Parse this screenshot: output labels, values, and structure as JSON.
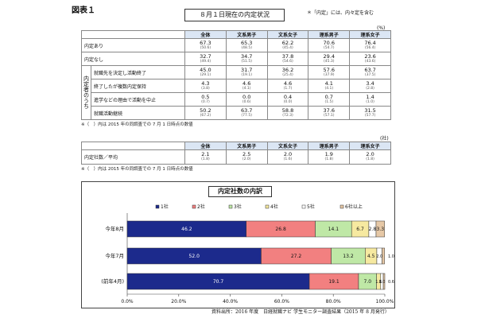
{
  "figure_label": "図表１",
  "table1": {
    "title": "８月１日現在の内定状況",
    "note": "＊「内定」には、内々定を含む",
    "unit": "(%)",
    "columns": [
      "全体",
      "文系男子",
      "文系女子",
      "理系男子",
      "理系女子"
    ],
    "rows": [
      {
        "label": "内定あり",
        "values": [
          "67.3",
          "65.3",
          "62.2",
          "70.6",
          "76.4"
        ],
        "prev": [
          "(50.6)",
          "(48.5)",
          "(45.4)",
          "(54.7)",
          "(56.4)"
        ]
      },
      {
        "label": "内定なし",
        "values": [
          "32.7",
          "34.7",
          "37.8",
          "29.4",
          "23.6"
        ],
        "prev": [
          "(49.4)",
          "(51.5)",
          "(54.6)",
          "(45.3)",
          "(43.6)"
        ]
      }
    ],
    "group_label": "内定者のうち",
    "group_rows": [
      {
        "label": "就職先を決定し活動終了",
        "values": [
          "45.0",
          "31.7",
          "36.2",
          "57.6",
          "63.7"
        ],
        "prev": [
          "(29.1)",
          "(19.1)",
          "(25.4)",
          "(37.9)",
          "(37.5)"
        ]
      },
      {
        "label": "終了したが複数内定保持",
        "values": [
          "4.3",
          "4.6",
          "4.6",
          "4.1",
          "3.4"
        ],
        "prev": [
          "(3.8)",
          "(4.1)",
          "(1.7)",
          "(4.1)",
          "(2.8)"
        ]
      },
      {
        "label": "進学などの理由で活動を中止",
        "values": [
          "0.5",
          "0.0",
          "0.4",
          "0.7",
          "1.4"
        ],
        "prev": [
          "(0.7)",
          "(0.6)",
          "(0.0)",
          "(1.5)",
          "(1.0)"
        ]
      },
      {
        "label": "就職活動継続",
        "values": [
          "50.2",
          "63.7",
          "58.8",
          "37.6",
          "31.5"
        ],
        "prev": [
          "(67.2)",
          "(77.5)",
          "(72.3)",
          "(57.1)",
          "(57.7)"
        ]
      }
    ],
    "footnote": "※（　）内は 2015 年の同調査での 7 月 1 日時点の数値"
  },
  "table2": {
    "unit": "(社)",
    "columns": [
      "全体",
      "文系男子",
      "文系女子",
      "理系男子",
      "理系女子"
    ],
    "row": {
      "label": "内定社数／平均",
      "values": [
        "2.1",
        "2.5",
        "2.0",
        "1.9",
        "2.0"
      ],
      "prev": [
        "(1.8)",
        "(2.0)",
        "(1.6)",
        "(1.8)",
        "(1.8)"
      ]
    },
    "footnote": "※（　）内は 2015 年の同調査での 7 月 1 日時点の数値"
  },
  "chart_data": {
    "type": "bar",
    "orientation": "horizontal",
    "stacked": true,
    "title": "内定社数の内訳",
    "categories": [
      "今年8月",
      "今年7月",
      "(前年4月)"
    ],
    "series": [
      {
        "name": "1社",
        "values": [
          46.2,
          52.0,
          70.7
        ],
        "labels": [
          "46.2",
          "52.0",
          "70.7"
        ],
        "color": "#1c2a8c"
      },
      {
        "name": "2社",
        "values": [
          26.8,
          27.2,
          19.1
        ],
        "labels": [
          "26.8",
          "27.2",
          "19.1"
        ],
        "color": "#f28080"
      },
      {
        "name": "3社",
        "values": [
          14.1,
          13.2,
          7.0
        ],
        "labels": [
          "14.1",
          "13.2",
          "7.0"
        ],
        "color": "#bfe8a6"
      },
      {
        "name": "4社",
        "values": [
          6.7,
          4.5,
          1.6
        ],
        "labels": [
          "6.7",
          "4.5",
          "1.6"
        ],
        "color": "#f6e9a0"
      },
      {
        "name": "5社",
        "values": [
          2.8,
          2.0,
          1.0
        ],
        "labels": [
          "2.8",
          "2.0",
          "1.0"
        ],
        "color": "#ffffff"
      },
      {
        "name": "6社以上",
        "values": [
          3.3,
          1.0,
          0.6
        ],
        "labels": [
          "3.3",
          "1.0",
          "0.6"
        ],
        "color": "#e6c8a6"
      }
    ],
    "xlim": [
      0,
      100
    ],
    "xticks": [
      "0.0%",
      "20.0%",
      "40.0%",
      "60.0%",
      "80.0%",
      "100.0%"
    ],
    "legend_position": "top"
  },
  "source": "資料出所：2016 年度　日経就職ナビ 学生モニター調査結果（2015 年 8 月発行）"
}
